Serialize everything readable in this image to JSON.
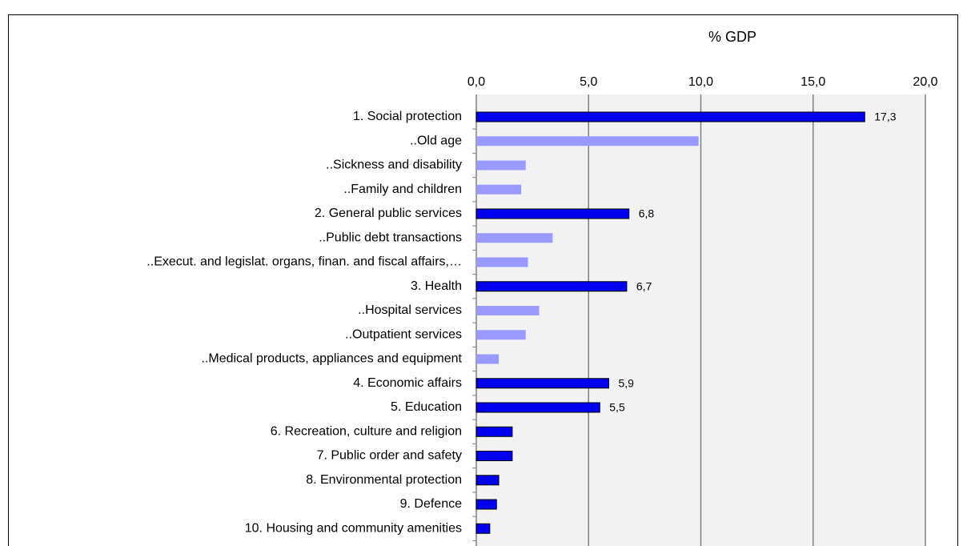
{
  "chart_data": {
    "type": "bar",
    "orientation": "horizontal",
    "x_axis_label": "% GDP",
    "categories": [
      "1. Social protection",
      "..Old age",
      "..Sickness and disability",
      "..Family and children",
      "2. General public services",
      "..Public debt transactions",
      "..Execut. and legislat. organs, finan. and fiscal affairs,…",
      "3. Health",
      "..Hospital services",
      "..Outpatient services",
      "..Medical products, appliances and equipment",
      "4. Economic affairs",
      "5. Education",
      "6. Recreation, culture and religion",
      "7. Public order and safety",
      "8. Environmental protection",
      "9. Defence",
      "10. Housing and community amenities"
    ],
    "values": [
      17.3,
      9.9,
      2.2,
      2.0,
      6.8,
      3.4,
      2.3,
      6.7,
      2.8,
      2.2,
      1.0,
      5.9,
      5.5,
      1.6,
      1.6,
      1.0,
      0.9,
      0.6
    ],
    "value_labels": [
      "17,3",
      null,
      null,
      null,
      "6,8",
      null,
      null,
      "6,7",
      null,
      null,
      null,
      "5,9",
      "5,5",
      null,
      null,
      null,
      null,
      null
    ],
    "colors": [
      "#0000ee",
      "#9999ff",
      "#9999ff",
      "#9999ff",
      "#0000ee",
      "#9999ff",
      "#9999ff",
      "#0000ee",
      "#9999ff",
      "#9999ff",
      "#9999ff",
      "#0000ee",
      "#0000ee",
      "#0000ee",
      "#0000ee",
      "#0000ee",
      "#0000ee",
      "#0000ee"
    ],
    "xlim": [
      0,
      20
    ],
    "xticks": [
      {
        "value": 0,
        "label": "0,0"
      },
      {
        "value": 5,
        "label": "5,0"
      },
      {
        "value": 10,
        "label": "10,0"
      },
      {
        "value": 15,
        "label": "15,0"
      },
      {
        "value": 20,
        "label": "20,0"
      }
    ],
    "grid": true
  }
}
